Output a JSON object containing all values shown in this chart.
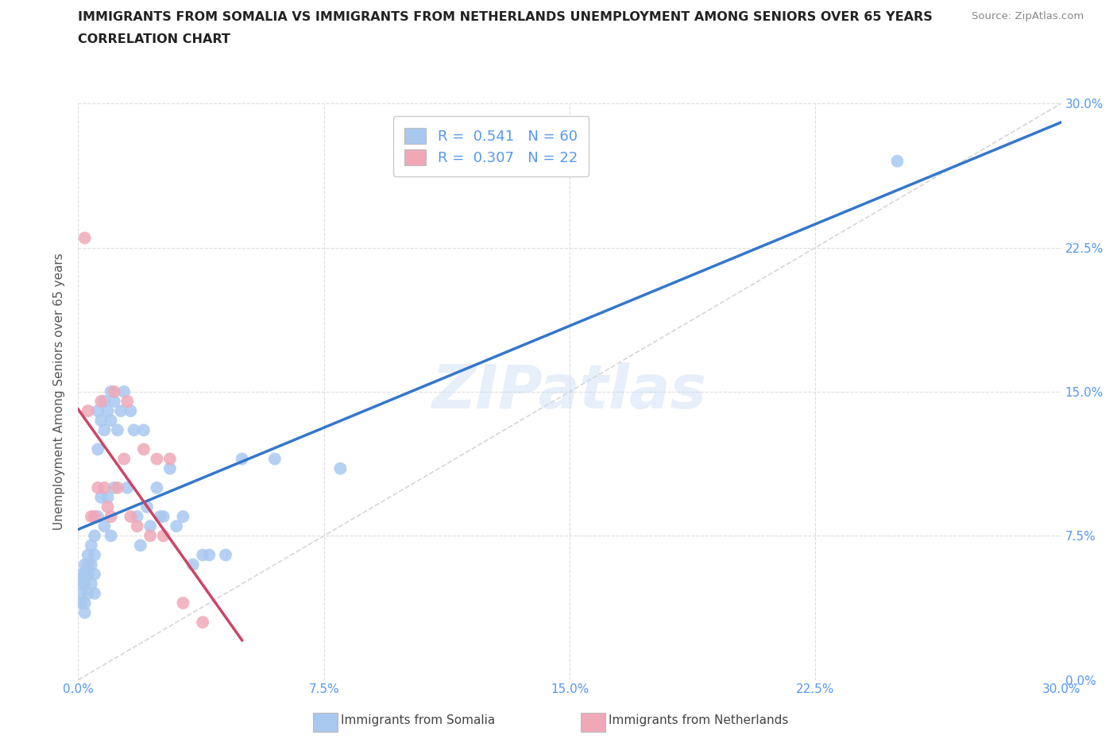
{
  "title_line1": "IMMIGRANTS FROM SOMALIA VS IMMIGRANTS FROM NETHERLANDS UNEMPLOYMENT AMONG SENIORS OVER 65 YEARS",
  "title_line2": "CORRELATION CHART",
  "source_text": "Source: ZipAtlas.com",
  "ylabel": "Unemployment Among Seniors over 65 years",
  "xlim": [
    0.0,
    0.3
  ],
  "ylim": [
    0.0,
    0.3
  ],
  "xticks": [
    0.0,
    0.075,
    0.15,
    0.225,
    0.3
  ],
  "yticks": [
    0.0,
    0.075,
    0.15,
    0.225,
    0.3
  ],
  "xticklabels": [
    "0.0%",
    "7.5%",
    "15.0%",
    "22.5%",
    "30.0%"
  ],
  "yticklabels": [
    "0.0%",
    "7.5%",
    "15.0%",
    "22.5%",
    "30.0%"
  ],
  "somalia_color": "#a8c8f0",
  "netherlands_color": "#f0a8b8",
  "somalia_R": 0.541,
  "somalia_N": 60,
  "netherlands_R": 0.307,
  "netherlands_N": 22,
  "somalia_line_color": "#3377cc",
  "netherlands_line_color": "#cc4466",
  "diagonal_color": "#cccccc",
  "tick_color_blue": "#5599ee",
  "tick_color_gray": "#aaaaaa",
  "watermark": "ZIPatlas",
  "somalia_x": [
    0.001,
    0.001,
    0.001,
    0.001,
    0.002,
    0.002,
    0.002,
    0.002,
    0.002,
    0.003,
    0.003,
    0.003,
    0.003,
    0.004,
    0.004,
    0.004,
    0.005,
    0.005,
    0.005,
    0.005,
    0.006,
    0.006,
    0.006,
    0.007,
    0.007,
    0.008,
    0.008,
    0.008,
    0.009,
    0.009,
    0.01,
    0.01,
    0.01,
    0.011,
    0.011,
    0.012,
    0.013,
    0.014,
    0.015,
    0.016,
    0.017,
    0.018,
    0.019,
    0.02,
    0.021,
    0.022,
    0.024,
    0.025,
    0.026,
    0.028,
    0.03,
    0.032,
    0.035,
    0.038,
    0.04,
    0.045,
    0.05,
    0.06,
    0.08,
    0.25
  ],
  "somalia_y": [
    0.055,
    0.05,
    0.045,
    0.04,
    0.06,
    0.055,
    0.05,
    0.04,
    0.035,
    0.065,
    0.06,
    0.055,
    0.045,
    0.07,
    0.06,
    0.05,
    0.075,
    0.065,
    0.055,
    0.045,
    0.14,
    0.12,
    0.085,
    0.135,
    0.095,
    0.145,
    0.13,
    0.08,
    0.14,
    0.095,
    0.15,
    0.135,
    0.075,
    0.145,
    0.1,
    0.13,
    0.14,
    0.15,
    0.1,
    0.14,
    0.13,
    0.085,
    0.07,
    0.13,
    0.09,
    0.08,
    0.1,
    0.085,
    0.085,
    0.11,
    0.08,
    0.085,
    0.06,
    0.065,
    0.065,
    0.065,
    0.115,
    0.115,
    0.11,
    0.27
  ],
  "netherlands_x": [
    0.002,
    0.003,
    0.004,
    0.005,
    0.006,
    0.007,
    0.008,
    0.009,
    0.01,
    0.011,
    0.012,
    0.014,
    0.015,
    0.016,
    0.018,
    0.02,
    0.022,
    0.024,
    0.026,
    0.028,
    0.032,
    0.038
  ],
  "netherlands_y": [
    0.23,
    0.14,
    0.085,
    0.085,
    0.1,
    0.145,
    0.1,
    0.09,
    0.085,
    0.15,
    0.1,
    0.115,
    0.145,
    0.085,
    0.08,
    0.12,
    0.075,
    0.115,
    0.075,
    0.115,
    0.04,
    0.03
  ]
}
